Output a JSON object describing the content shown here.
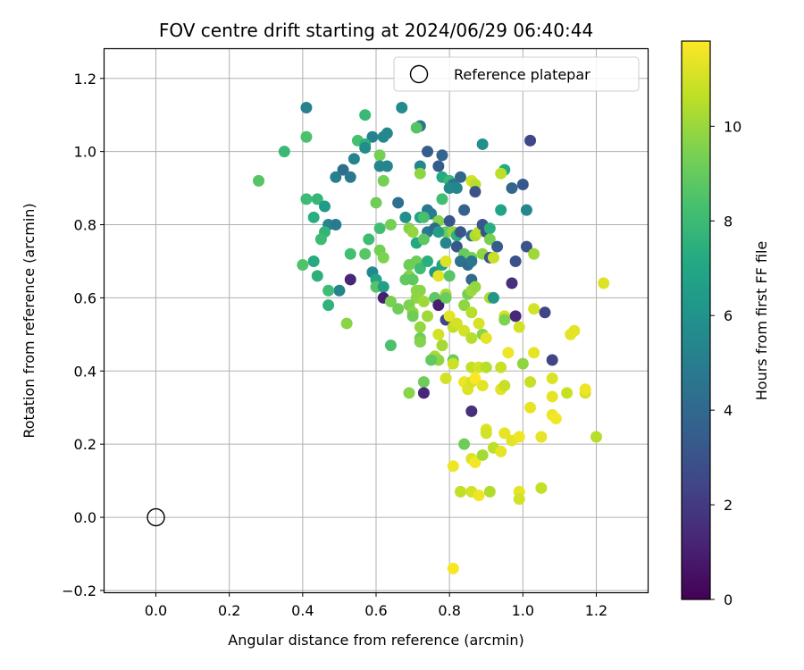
{
  "chart_data": {
    "type": "scatter",
    "title": "FOV centre drift starting at 2024/06/29 06:40:44",
    "xlabel": "Angular distance from reference (arcmin)",
    "ylabel": "Rotation from reference (arcmin)",
    "xlim": [
      -0.14,
      1.34
    ],
    "ylim": [
      -0.205,
      1.28
    ],
    "xticks": [
      0.0,
      0.2,
      0.4,
      0.6,
      0.8,
      1.0,
      1.2
    ],
    "xtick_labels": [
      "0.0",
      "0.2",
      "0.4",
      "0.6",
      "0.8",
      "1.0",
      "1.2"
    ],
    "yticks": [
      -0.2,
      0.0,
      0.2,
      0.4,
      0.6,
      0.8,
      1.0,
      1.2
    ],
    "ytick_labels": [
      "−0.2",
      "0.0",
      "0.2",
      "0.4",
      "0.6",
      "0.8",
      "1.0",
      "1.2"
    ],
    "grid": true,
    "legend": {
      "placement": "top-right",
      "entries": [
        "Reference platepar"
      ]
    },
    "reference_point": {
      "x": 0.0,
      "y": 0.0,
      "label": "Reference platepar"
    },
    "colorbar": {
      "label": "Hours from first FF file",
      "min": 0,
      "max": 11.8,
      "ticks": [
        0,
        2,
        4,
        6,
        8,
        10
      ],
      "tick_labels": [
        "0",
        "2",
        "4",
        "6",
        "8",
        "10"
      ],
      "colormap": "viridis"
    },
    "series": [
      {
        "points": [
          [
            0.41,
            1.12,
            5.2
          ],
          [
            0.67,
            1.12,
            5.6
          ],
          [
            0.57,
            1.1,
            7.9
          ],
          [
            0.72,
            1.07,
            4.6
          ],
          [
            0.71,
            1.065,
            8.6
          ],
          [
            0.63,
            1.05,
            5.4
          ],
          [
            0.62,
            1.04,
            5.5
          ],
          [
            0.59,
            1.04,
            5.2
          ],
          [
            0.55,
            1.03,
            8.3
          ],
          [
            0.57,
            1.02,
            7.5
          ],
          [
            0.41,
            1.04,
            8.4
          ],
          [
            0.35,
            1.0,
            7.9
          ],
          [
            0.57,
            1.01,
            5.7
          ],
          [
            0.54,
            0.98,
            5.3
          ],
          [
            0.61,
            0.99,
            9.3
          ],
          [
            0.61,
            0.96,
            5.4
          ],
          [
            0.63,
            0.96,
            5.3
          ],
          [
            0.72,
            0.96,
            5.4
          ],
          [
            0.74,
            1.0,
            3.5
          ],
          [
            0.78,
            0.99,
            3.8
          ],
          [
            0.89,
            1.02,
            5.8
          ],
          [
            1.02,
            1.03,
            2.5
          ],
          [
            0.51,
            0.95,
            4.3
          ],
          [
            0.49,
            0.93,
            5.1
          ],
          [
            0.53,
            0.93,
            4.8
          ],
          [
            0.62,
            0.92,
            9.3
          ],
          [
            0.72,
            0.94,
            9.8
          ],
          [
            0.77,
            0.96,
            3.4
          ],
          [
            0.78,
            0.93,
            7.2
          ],
          [
            0.8,
            0.92,
            7.9
          ],
          [
            0.83,
            0.93,
            3.9
          ],
          [
            0.81,
            0.91,
            4.5
          ],
          [
            0.8,
            0.9,
            5.5
          ],
          [
            0.82,
            0.9,
            5.4
          ],
          [
            0.86,
            0.92,
            11.0
          ],
          [
            0.87,
            0.91,
            10.5
          ],
          [
            0.95,
            0.95,
            7.2
          ],
          [
            0.94,
            0.94,
            10.6
          ],
          [
            0.97,
            0.9,
            3.8
          ],
          [
            1.0,
            0.91,
            3.2
          ],
          [
            0.87,
            0.89,
            2.9
          ],
          [
            0.28,
            0.92,
            8.6
          ],
          [
            0.41,
            0.87,
            8.0
          ],
          [
            0.44,
            0.87,
            7.8
          ],
          [
            0.46,
            0.85,
            6.4
          ],
          [
            0.6,
            0.86,
            9.2
          ],
          [
            0.66,
            0.86,
            4.4
          ],
          [
            0.78,
            0.87,
            8.2
          ],
          [
            0.84,
            0.84,
            3.7
          ],
          [
            0.74,
            0.84,
            4.7
          ],
          [
            0.75,
            0.83,
            5.0
          ],
          [
            0.68,
            0.82,
            5.8
          ],
          [
            0.72,
            0.82,
            6.8
          ],
          [
            0.73,
            0.82,
            8.3
          ],
          [
            0.77,
            0.81,
            9.6
          ],
          [
            0.8,
            0.81,
            3.1
          ],
          [
            0.94,
            0.84,
            6.8
          ],
          [
            1.01,
            0.84,
            5.4
          ],
          [
            0.43,
            0.82,
            7.4
          ],
          [
            0.47,
            0.8,
            5.3
          ],
          [
            0.49,
            0.8,
            4.8
          ],
          [
            0.61,
            0.79,
            8.2
          ],
          [
            0.64,
            0.8,
            9.3
          ],
          [
            0.69,
            0.79,
            9.6
          ],
          [
            0.7,
            0.78,
            9.9
          ],
          [
            0.74,
            0.78,
            4.8
          ],
          [
            0.76,
            0.79,
            4.0
          ],
          [
            0.79,
            0.78,
            9.1
          ],
          [
            0.81,
            0.78,
            9.9
          ],
          [
            0.82,
            0.77,
            7.5
          ],
          [
            0.83,
            0.78,
            3.1
          ],
          [
            0.86,
            0.77,
            4.3
          ],
          [
            0.87,
            0.77,
            10.4
          ],
          [
            0.88,
            0.78,
            10.6
          ],
          [
            0.89,
            0.8,
            3.2
          ],
          [
            0.9,
            0.78,
            3.0
          ],
          [
            0.91,
            0.79,
            7.4
          ],
          [
            0.91,
            0.76,
            9.4
          ],
          [
            0.46,
            0.78,
            7.7
          ],
          [
            0.45,
            0.76,
            8.0
          ],
          [
            0.58,
            0.76,
            8.1
          ],
          [
            0.71,
            0.75,
            7.1
          ],
          [
            0.73,
            0.76,
            8.8
          ],
          [
            0.77,
            0.78,
            6.5
          ],
          [
            0.79,
            0.75,
            5.3
          ],
          [
            0.82,
            0.74,
            3.2
          ],
          [
            0.84,
            0.72,
            9.0
          ],
          [
            0.86,
            0.71,
            9.3
          ],
          [
            0.89,
            0.72,
            9.8
          ],
          [
            0.93,
            0.74,
            3.4
          ],
          [
            1.01,
            0.74,
            3.0
          ],
          [
            1.03,
            0.72,
            10.1
          ],
          [
            0.4,
            0.69,
            8.5
          ],
          [
            0.43,
            0.7,
            7.2
          ],
          [
            0.53,
            0.72,
            8.2
          ],
          [
            0.57,
            0.72,
            8.7
          ],
          [
            0.61,
            0.73,
            9.3
          ],
          [
            0.62,
            0.71,
            9.5
          ],
          [
            0.71,
            0.7,
            9.2
          ],
          [
            0.72,
            0.68,
            8.1
          ],
          [
            0.74,
            0.7,
            7.4
          ],
          [
            0.76,
            0.67,
            6.2
          ],
          [
            0.78,
            0.69,
            6.8
          ],
          [
            0.79,
            0.7,
            11.2
          ],
          [
            0.83,
            0.7,
            4.4
          ],
          [
            0.85,
            0.69,
            4.1
          ],
          [
            0.86,
            0.7,
            4.6
          ],
          [
            0.91,
            0.71,
            3.0
          ],
          [
            0.92,
            0.71,
            10.8
          ],
          [
            0.98,
            0.7,
            2.9
          ],
          [
            0.69,
            0.69,
            9.2
          ],
          [
            0.69,
            0.66,
            9.6
          ],
          [
            0.77,
            0.66,
            11.3
          ],
          [
            0.8,
            0.66,
            8.7
          ],
          [
            0.86,
            0.65,
            4.0
          ],
          [
            0.44,
            0.66,
            7.5
          ],
          [
            0.5,
            0.62,
            5.3
          ],
          [
            0.53,
            0.65,
            1.3
          ],
          [
            0.59,
            0.67,
            5.5
          ],
          [
            0.6,
            0.65,
            6.8
          ],
          [
            0.6,
            0.63,
            8.6
          ],
          [
            0.62,
            0.63,
            6.6
          ],
          [
            0.68,
            0.65,
            8.9
          ],
          [
            0.7,
            0.65,
            8.8
          ],
          [
            0.71,
            0.62,
            9.8
          ],
          [
            0.72,
            0.62,
            9.7
          ],
          [
            0.71,
            0.6,
            9.8
          ],
          [
            0.76,
            0.6,
            8.8
          ],
          [
            0.79,
            0.61,
            10.3
          ],
          [
            0.85,
            0.61,
            9.3
          ],
          [
            0.86,
            0.62,
            10.1
          ],
          [
            0.87,
            0.63,
            9.9
          ],
          [
            0.91,
            0.6,
            10.4
          ],
          [
            0.92,
            0.6,
            6.2
          ],
          [
            0.97,
            0.64,
            1.6
          ],
          [
            0.47,
            0.62,
            8.1
          ],
          [
            0.47,
            0.58,
            7.6
          ],
          [
            0.62,
            0.6,
            1.0
          ],
          [
            0.64,
            0.59,
            9.4
          ],
          [
            0.66,
            0.57,
            9.2
          ],
          [
            0.69,
            0.58,
            9.5
          ],
          [
            0.7,
            0.56,
            9.8
          ],
          [
            0.73,
            0.59,
            10.1
          ],
          [
            0.77,
            0.58,
            1.0
          ],
          [
            0.79,
            0.6,
            9.1
          ],
          [
            0.84,
            0.58,
            9.8
          ],
          [
            0.86,
            0.56,
            10.5
          ],
          [
            0.88,
            0.53,
            11.1
          ],
          [
            0.95,
            0.55,
            11.0
          ],
          [
            0.98,
            0.55,
            1.3
          ],
          [
            1.03,
            0.57,
            11.0
          ],
          [
            1.06,
            0.56,
            2.4
          ],
          [
            0.52,
            0.53,
            9.7
          ],
          [
            0.7,
            0.55,
            9.2
          ],
          [
            0.72,
            0.52,
            9.9
          ],
          [
            0.74,
            0.55,
            10.1
          ],
          [
            0.79,
            0.54,
            2.5
          ],
          [
            0.8,
            0.55,
            11.3
          ],
          [
            0.81,
            0.52,
            10.7
          ],
          [
            0.82,
            0.53,
            11.0
          ],
          [
            0.84,
            0.51,
            11.0
          ],
          [
            0.86,
            0.49,
            10.5
          ],
          [
            0.89,
            0.5,
            9.7
          ],
          [
            0.9,
            0.49,
            11.3
          ],
          [
            0.95,
            0.54,
            9.5
          ],
          [
            0.99,
            0.52,
            11.0
          ],
          [
            0.72,
            0.49,
            9.2
          ],
          [
            0.72,
            0.48,
            6.6
          ],
          [
            0.77,
            0.5,
            11.0
          ],
          [
            0.78,
            0.47,
            10.2
          ],
          [
            0.64,
            0.47,
            8.4
          ],
          [
            0.72,
            0.48,
            9.6
          ],
          [
            0.76,
            0.44,
            10.3
          ],
          [
            0.77,
            0.43,
            9.8
          ],
          [
            0.81,
            0.43,
            9.0
          ],
          [
            0.86,
            0.41,
            10.7
          ],
          [
            0.88,
            0.41,
            11.0
          ],
          [
            0.9,
            0.41,
            10.5
          ],
          [
            0.94,
            0.41,
            10.8
          ],
          [
            0.96,
            0.45,
            11.5
          ],
          [
            1.0,
            0.42,
            9.8
          ],
          [
            1.03,
            0.45,
            11.4
          ],
          [
            1.08,
            0.43,
            2.4
          ],
          [
            1.13,
            0.5,
            11.3
          ],
          [
            1.14,
            0.51,
            11.3
          ],
          [
            0.73,
            0.37,
            9.2
          ],
          [
            0.75,
            0.43,
            8.9
          ],
          [
            0.79,
            0.38,
            11.0
          ],
          [
            0.81,
            0.42,
            10.9
          ],
          [
            0.84,
            0.37,
            11.5
          ],
          [
            0.85,
            0.35,
            11.2
          ],
          [
            0.86,
            0.37,
            11.1
          ],
          [
            0.87,
            0.38,
            11.8
          ],
          [
            0.89,
            0.36,
            11.3
          ],
          [
            0.94,
            0.35,
            11.3
          ],
          [
            0.95,
            0.36,
            10.8
          ],
          [
            1.02,
            0.37,
            10.8
          ],
          [
            1.08,
            0.38,
            11.2
          ],
          [
            1.08,
            0.33,
            11.4
          ],
          [
            1.12,
            0.34,
            10.8
          ],
          [
            1.17,
            0.34,
            11.1
          ],
          [
            1.17,
            0.35,
            11.5
          ],
          [
            0.69,
            0.34,
            9.7
          ],
          [
            0.73,
            0.34,
            1.3
          ],
          [
            0.86,
            0.29,
            1.6
          ],
          [
            1.02,
            0.3,
            11.4
          ],
          [
            1.08,
            0.28,
            11.5
          ],
          [
            1.09,
            0.27,
            11.6
          ],
          [
            0.9,
            0.24,
            11.2
          ],
          [
            0.9,
            0.23,
            11.0
          ],
          [
            0.95,
            0.23,
            11.4
          ],
          [
            0.97,
            0.21,
            11.3
          ],
          [
            0.99,
            0.22,
            11.5
          ],
          [
            1.05,
            0.22,
            11.4
          ],
          [
            1.2,
            0.22,
            10.5
          ],
          [
            0.84,
            0.2,
            9.2
          ],
          [
            0.92,
            0.19,
            10.6
          ],
          [
            0.94,
            0.18,
            11.4
          ],
          [
            0.86,
            0.16,
            11.2
          ],
          [
            0.87,
            0.15,
            11.6
          ],
          [
            0.89,
            0.17,
            10.2
          ],
          [
            0.81,
            0.14,
            11.5
          ],
          [
            0.83,
            0.07,
            10.7
          ],
          [
            0.86,
            0.07,
            11.0
          ],
          [
            0.88,
            0.06,
            11.5
          ],
          [
            0.91,
            0.07,
            10.4
          ],
          [
            0.99,
            0.07,
            11.4
          ],
          [
            0.99,
            0.05,
            11.0
          ],
          [
            1.05,
            0.08,
            10.7
          ],
          [
            1.22,
            0.64,
            11.2
          ],
          [
            0.81,
            -0.14,
            11.7
          ]
        ]
      }
    ]
  }
}
